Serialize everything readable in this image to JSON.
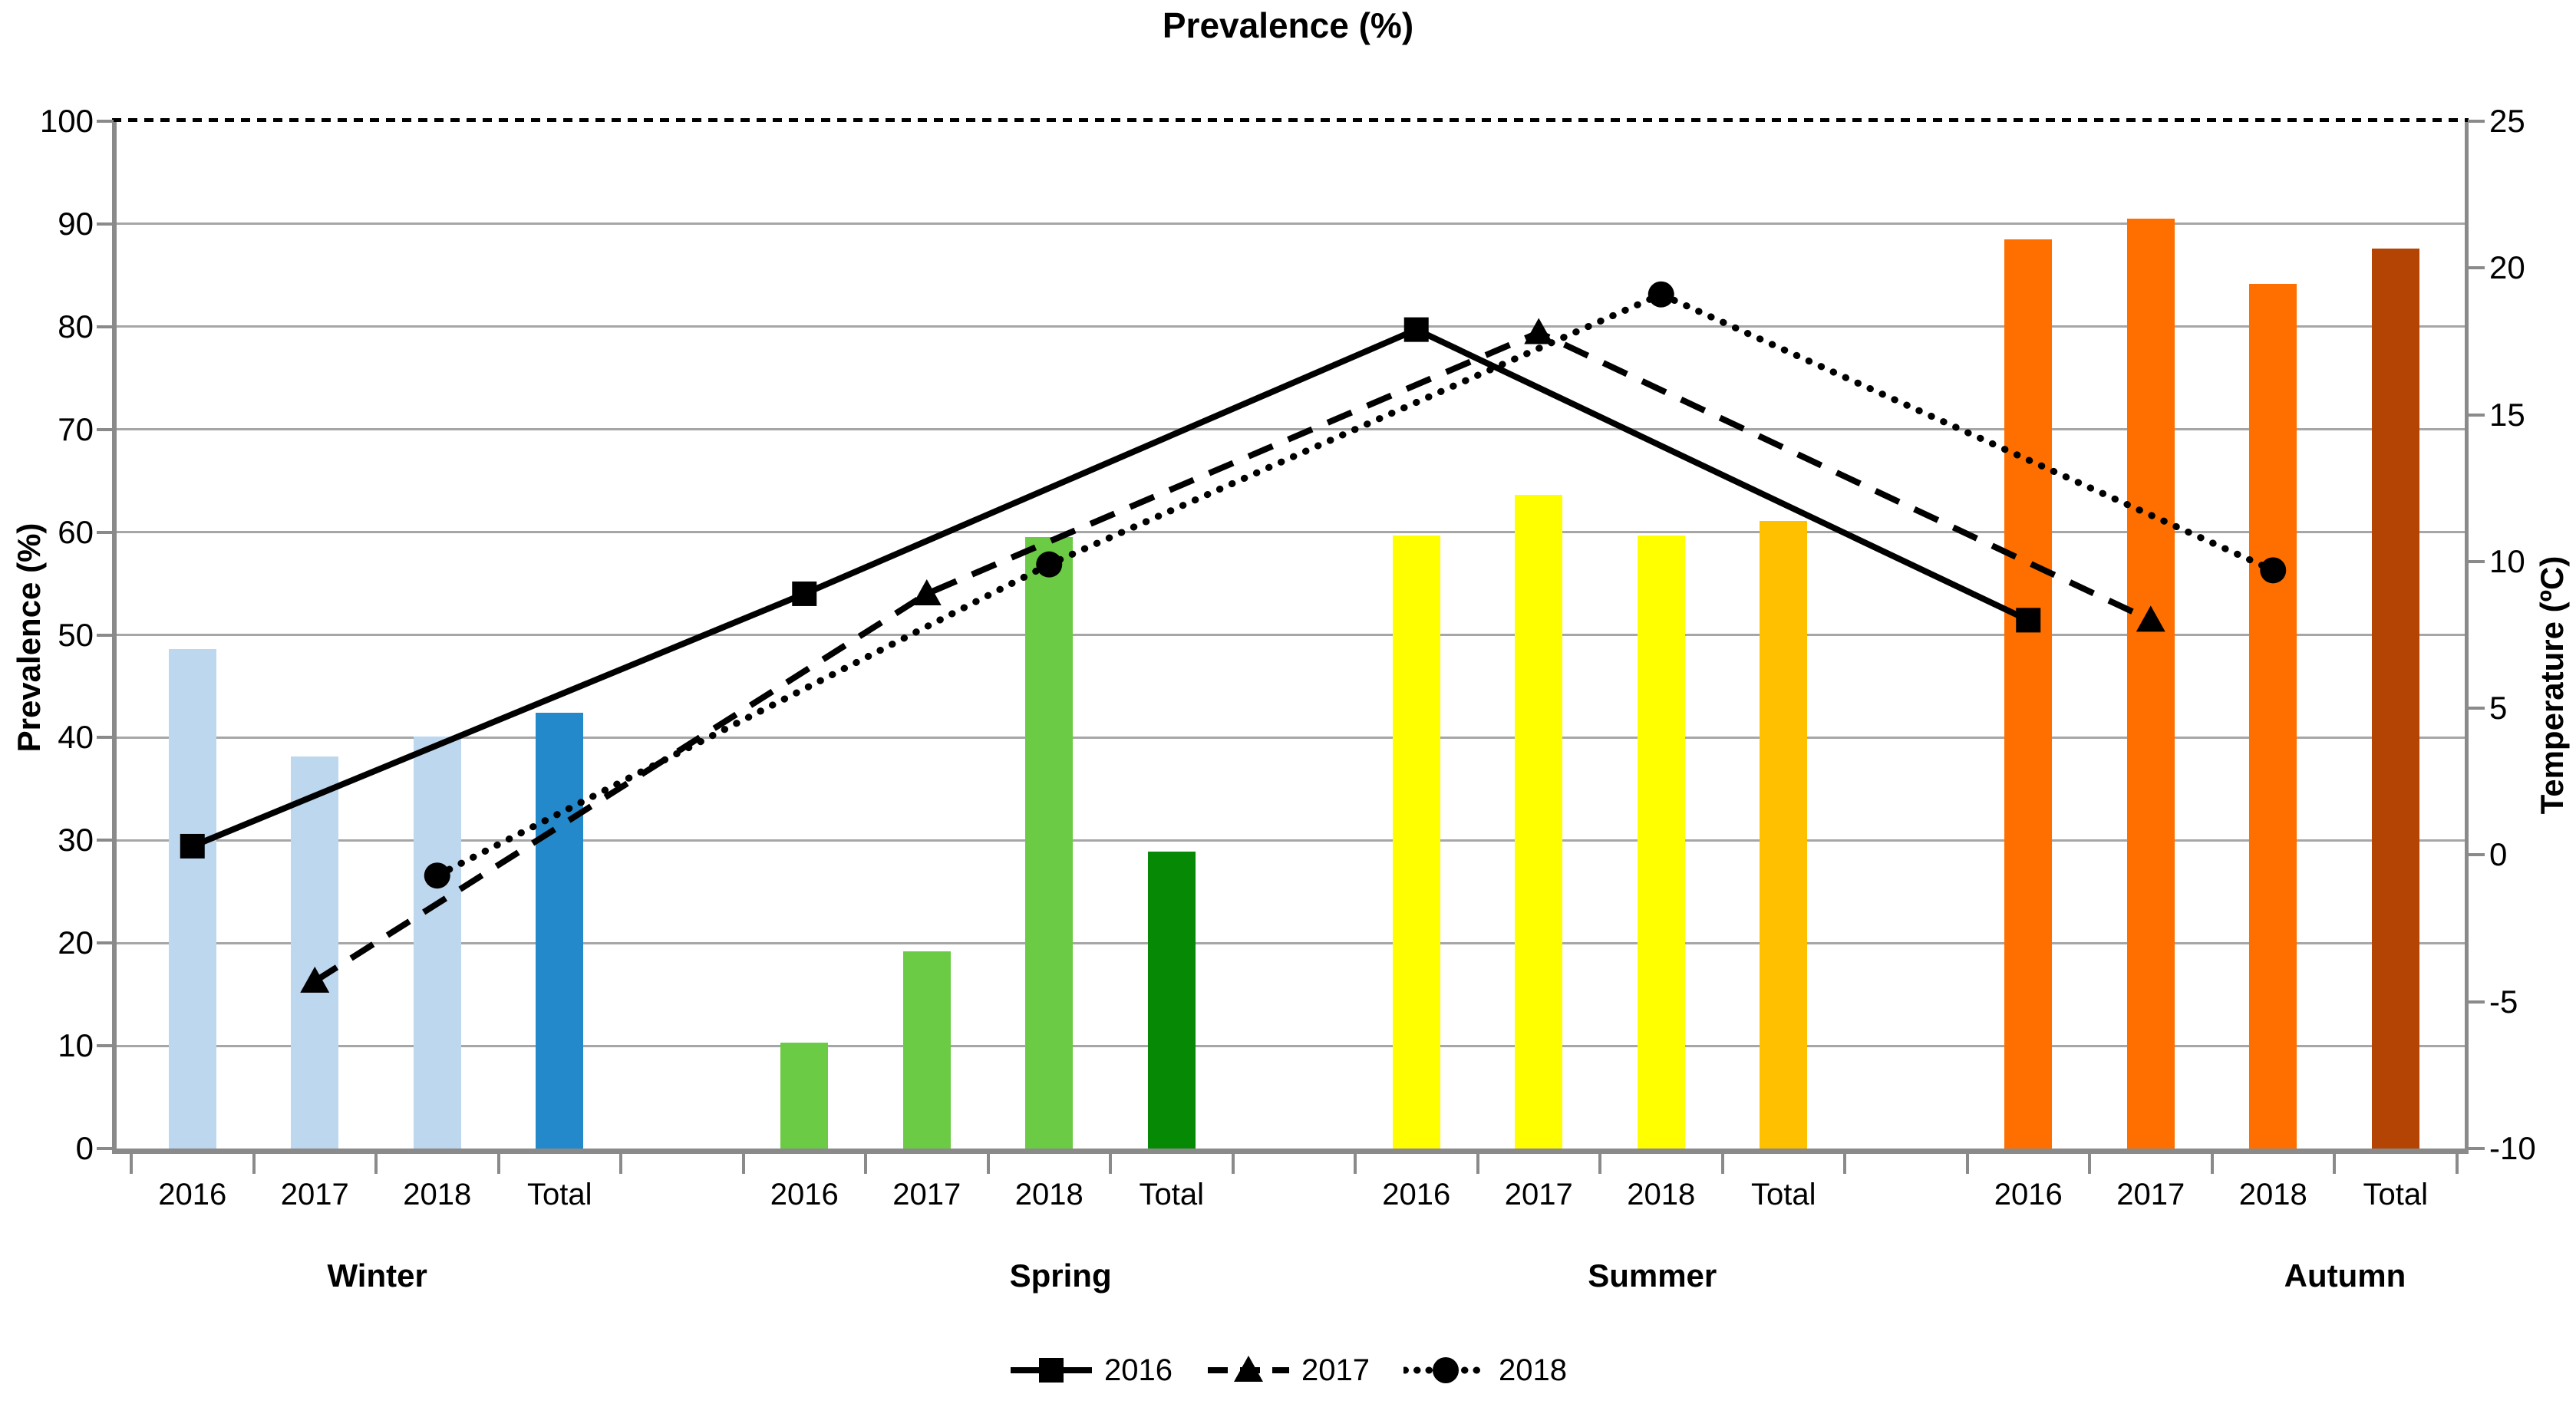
{
  "title": "Prevalence (%)",
  "chart_data": {
    "type": "combo-bar-line",
    "title": "Prevalence (%)",
    "seasons": [
      "Winter",
      "Spring",
      "Summer",
      "Autumn"
    ],
    "bar_categories": [
      "2016",
      "2017",
      "2018",
      "Total"
    ],
    "left_axis": {
      "label": "Prevalence (%)",
      "min": 0,
      "max": 100,
      "step": 10,
      "ticks": [
        0,
        10,
        20,
        30,
        40,
        50,
        60,
        70,
        80,
        90,
        100
      ]
    },
    "right_axis": {
      "label": "Temperature (ºC)",
      "min": -10,
      "max": 25,
      "step": 5,
      "ticks": [
        25,
        20,
        15,
        10,
        5,
        0,
        -5,
        -10
      ]
    },
    "bar_series_percent": [
      {
        "season": "Winter",
        "values": [
          48.6,
          38.2,
          40.1,
          42.4
        ],
        "bar_color": "#BDD7EE",
        "total_color": "#2389CB"
      },
      {
        "season": "Spring",
        "values": [
          10.3,
          19.2,
          59.5,
          28.9
        ],
        "bar_color": "#6CCB44",
        "total_color": "#068A06"
      },
      {
        "season": "Summer",
        "values": [
          59.7,
          63.6,
          59.7,
          61.1
        ],
        "bar_color": "#FFFF00",
        "total_color": "#FFC000"
      },
      {
        "season": "Autumn",
        "values": [
          88.5,
          90.5,
          84.2,
          87.6
        ],
        "bar_color": "#FF6F00",
        "total_color": "#B34403"
      }
    ],
    "line_series_temperature": [
      {
        "name": "2016",
        "style": "solid",
        "marker": "square",
        "values": [
          0.3,
          8.9,
          17.9,
          8.0
        ]
      },
      {
        "name": "2017",
        "style": "dashed",
        "marker": "triangle",
        "values": [
          -4.3,
          8.9,
          17.8,
          8.0
        ]
      },
      {
        "name": "2018",
        "style": "dotted",
        "marker": "circle",
        "values": [
          -0.7,
          9.9,
          19.1,
          9.7
        ]
      }
    ],
    "line_color": "#000000",
    "grid": {
      "color": "#A6A6A6",
      "horizontal_only": true
    },
    "legend": {
      "position": "bottom",
      "entries": [
        "2016",
        "2017",
        "2018"
      ]
    }
  }
}
